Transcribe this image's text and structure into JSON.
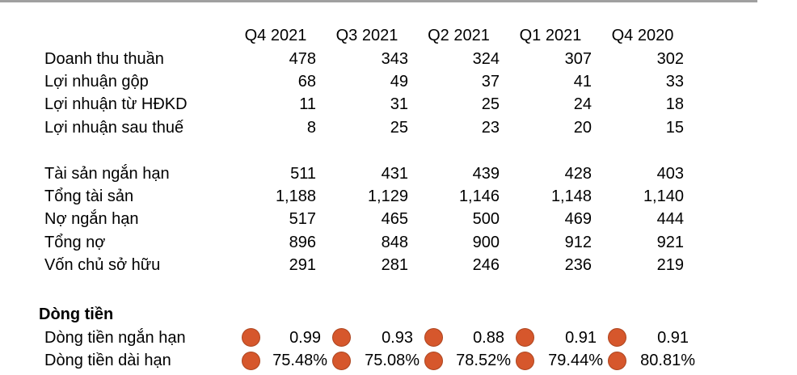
{
  "chrome": {
    "top_border_color": "#a0a0a0"
  },
  "table": {
    "columns": [
      "Q4 2021",
      "Q3 2021",
      "Q2 2021",
      "Q1 2021",
      "Q4 2020"
    ],
    "sections": [
      {
        "name": "income-statement",
        "rows": [
          {
            "label": "Doanh thu thuần",
            "values": [
              "478",
              "343",
              "324",
              "307",
              "302"
            ]
          },
          {
            "label": "Lợi nhuận gộp",
            "values": [
              "68",
              "49",
              "37",
              "41",
              "33"
            ]
          },
          {
            "label": "Lợi nhuận từ HĐKD",
            "values": [
              "11",
              "31",
              "25",
              "24",
              "18"
            ]
          },
          {
            "label": "Lợi nhuận sau thuế",
            "values": [
              "8",
              "25",
              "23",
              "20",
              "15"
            ]
          }
        ]
      },
      {
        "name": "balance-sheet",
        "rows": [
          {
            "label": "Tài sản ngắn hạn",
            "values": [
              "511",
              "431",
              "439",
              "428",
              "403"
            ]
          },
          {
            "label": "Tổng tài sản",
            "values": [
              "1,188",
              "1,129",
              "1,146",
              "1,148",
              "1,140"
            ]
          },
          {
            "label": "Nợ ngắn hạn",
            "values": [
              "517",
              "465",
              "500",
              "469",
              "444"
            ]
          },
          {
            "label": "Tổng nợ",
            "values": [
              "896",
              "848",
              "900",
              "912",
              "921"
            ]
          },
          {
            "label": "Vốn chủ sở hữu",
            "values": [
              "291",
              "281",
              "246",
              "236",
              "219"
            ]
          }
        ]
      },
      {
        "name": "cash-flow",
        "header": "Dòng tiền",
        "icon": "red-circle",
        "icon_color": "#d6572c",
        "icon_border_color": "#ad451f",
        "rows": [
          {
            "label": "Dòng tiền ngắn hạn",
            "values": [
              "0.99",
              "0.93",
              "0.88",
              "0.91",
              "0.91"
            ]
          },
          {
            "label": "Dòng tiền dài hạn",
            "values": [
              "75.48%",
              "75.08%",
              "78.52%",
              "79.44%",
              "80.81%"
            ]
          }
        ]
      }
    ]
  }
}
